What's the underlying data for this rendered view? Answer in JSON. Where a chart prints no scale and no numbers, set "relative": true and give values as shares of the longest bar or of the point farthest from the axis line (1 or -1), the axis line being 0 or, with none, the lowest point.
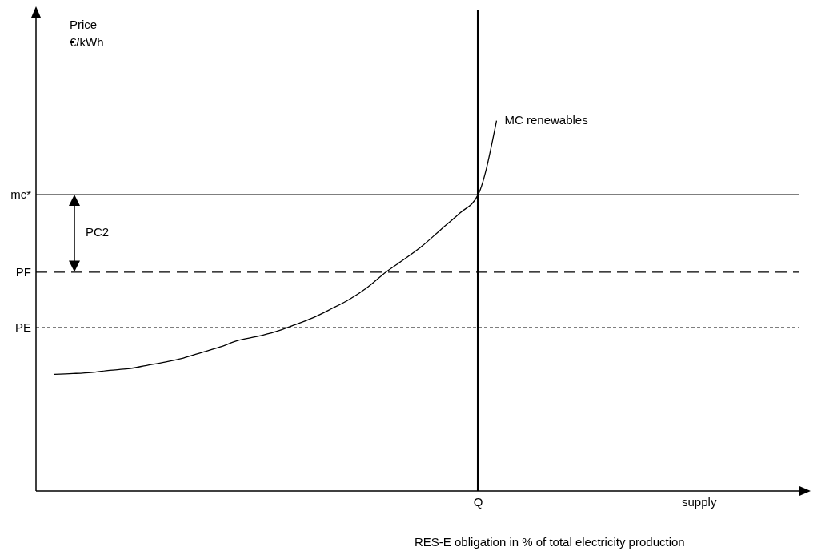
{
  "chart_data": {
    "type": "line",
    "relative": true,
    "xlabel": "RES-E obligation in % of total electricity production",
    "categories": [
      null,
      null,
      null,
      null,
      null,
      null,
      null,
      null,
      null,
      null,
      null,
      null,
      null,
      null,
      null,
      null,
      null,
      null,
      null,
      null,
      null,
      null,
      null,
      null,
      "Q",
      null,
      null,
      null,
      null,
      null,
      null,
      null,
      null,
      null,
      null,
      null,
      "supply",
      null
    ],
    "series": [
      {
        "name": "MC renewables",
        "color": "#000000",
        "values": [
          null,
          0.315,
          0.317,
          0.32,
          0.326,
          0.33,
          0.339,
          0.348,
          0.359,
          0.374,
          0.389,
          0.407,
          0.417,
          0.43,
          0.448,
          0.467,
          0.491,
          0.517,
          0.55,
          0.591,
          0.626,
          0.663,
          0.707,
          0.75,
          0.8,
          1,
          null,
          null,
          null,
          null,
          null,
          null,
          null,
          null,
          null,
          null,
          null,
          null
        ]
      }
    ],
    "ref_lines": [
      {
        "axis": "y",
        "value": 0.8,
        "label": "mc*",
        "line_style": "solid",
        "color": "#000000"
      },
      {
        "axis": "y",
        "value": 0.591,
        "label": "PF",
        "line_style": "dashed",
        "color": "#000000"
      },
      {
        "axis": "y",
        "value": 0.441,
        "label": "PE",
        "line_style": "dotted",
        "color": "#000000"
      },
      {
        "axis": "x",
        "value": "Q",
        "line_style": "solid",
        "color": "#000000"
      }
    ],
    "annotations": [
      "PC2",
      "Price €/kWh"
    ],
    "legend": false,
    "grid": false,
    "marker": "none",
    "line_style": "solid"
  }
}
